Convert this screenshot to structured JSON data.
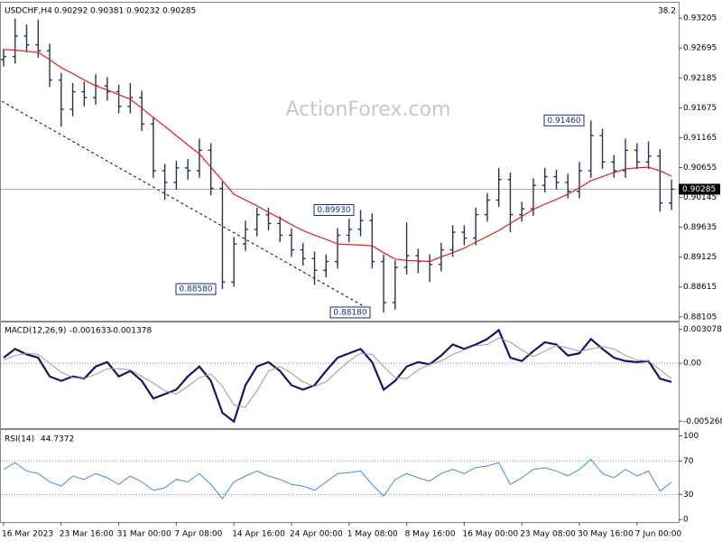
{
  "chart_data": [
    {
      "type": "ohlc",
      "title": "USDCHF,H4",
      "last_bar": {
        "open": 0.90292,
        "high": 0.90381,
        "low": 0.90232,
        "close": 0.90285
      },
      "fib_label": "38.2",
      "watermark": "ActionForex.com",
      "color": "#26325e",
      "categories": [
        "16 Mar 2023",
        null,
        null,
        null,
        null,
        "23 Mar 16:00",
        null,
        null,
        null,
        null,
        "31 Mar 00:00",
        null,
        null,
        null,
        null,
        "7 Apr 08:00",
        null,
        null,
        null,
        null,
        "14 Apr 16:00",
        null,
        null,
        null,
        null,
        "24 Apr 00:00",
        null,
        null,
        null,
        null,
        "1 May 08:00",
        null,
        null,
        null,
        null,
        "8 May 16:00",
        null,
        null,
        null,
        null,
        "16 May 00:00",
        null,
        null,
        null,
        null,
        "23 May 08:00",
        null,
        null,
        null,
        null,
        "30 May 16:00",
        null,
        null,
        null,
        null,
        "7 Jun 00:00",
        null,
        null,
        null
      ],
      "open": [
        0.925,
        0.9255,
        0.929,
        0.9275,
        0.9265,
        0.9215,
        0.9165,
        0.9195,
        0.9185,
        0.9205,
        0.9195,
        0.917,
        0.9185,
        0.914,
        0.906,
        0.904,
        0.9065,
        0.906,
        0.9095,
        0.903,
        0.887,
        0.8935,
        0.896,
        0.8985,
        0.897,
        0.895,
        0.8925,
        0.891,
        0.889,
        0.8905,
        0.895,
        0.896,
        0.8975,
        0.8905,
        0.8835,
        0.8895,
        0.8915,
        0.8905,
        0.89,
        0.8925,
        0.8955,
        0.8945,
        0.8985,
        0.901,
        0.9045,
        0.8985,
        0.8995,
        0.9035,
        0.905,
        0.904,
        0.9025,
        0.906,
        0.912,
        0.9075,
        0.906,
        0.9095,
        0.9075,
        0.9085,
        0.9005
      ],
      "high": [
        0.9268,
        0.932,
        0.931,
        0.9318,
        0.9277,
        0.9227,
        0.921,
        0.9212,
        0.9225,
        0.922,
        0.9207,
        0.921,
        0.9197,
        0.9152,
        0.9072,
        0.9077,
        0.908,
        0.9115,
        0.9107,
        0.9042,
        0.8947,
        0.8975,
        0.8997,
        0.8997,
        0.8982,
        0.8962,
        0.8937,
        0.8922,
        0.8917,
        0.8962,
        0.8978,
        0.8993,
        0.8987,
        0.8917,
        0.8907,
        0.8972,
        0.8927,
        0.8917,
        0.8937,
        0.8967,
        0.8967,
        0.8997,
        0.9022,
        0.9065,
        0.9057,
        0.9007,
        0.9047,
        0.9065,
        0.9062,
        0.9055,
        0.9075,
        0.9146,
        0.9132,
        0.9087,
        0.9115,
        0.9107,
        0.911,
        0.9097,
        0.9045
      ],
      "low": [
        0.9238,
        0.9243,
        0.9262,
        0.9253,
        0.9203,
        0.9135,
        0.9153,
        0.917,
        0.9173,
        0.918,
        0.9158,
        0.9158,
        0.9128,
        0.9048,
        0.901,
        0.9028,
        0.9045,
        0.9048,
        0.9018,
        0.8858,
        0.8862,
        0.8923,
        0.8948,
        0.8958,
        0.8938,
        0.8913,
        0.8898,
        0.8865,
        0.8878,
        0.8893,
        0.8938,
        0.8948,
        0.8893,
        0.8818,
        0.8823,
        0.8883,
        0.8885,
        0.887,
        0.8888,
        0.8913,
        0.8933,
        0.8933,
        0.8973,
        0.8998,
        0.8955,
        0.8973,
        0.8983,
        0.9023,
        0.9028,
        0.9013,
        0.9013,
        0.9048,
        0.9063,
        0.9048,
        0.9048,
        0.9063,
        0.9063,
        0.899,
        0.8993
      ],
      "close": [
        0.9255,
        0.929,
        0.9275,
        0.9265,
        0.9215,
        0.9165,
        0.9195,
        0.9185,
        0.9205,
        0.9195,
        0.917,
        0.9185,
        0.914,
        0.906,
        0.904,
        0.9065,
        0.906,
        0.9095,
        0.903,
        0.887,
        0.8935,
        0.896,
        0.8985,
        0.897,
        0.895,
        0.8925,
        0.891,
        0.889,
        0.8905,
        0.895,
        0.896,
        0.8975,
        0.8905,
        0.8835,
        0.8895,
        0.8915,
        0.8905,
        0.89,
        0.8925,
        0.8955,
        0.8945,
        0.8985,
        0.901,
        0.9045,
        0.8985,
        0.8995,
        0.9035,
        0.905,
        0.904,
        0.9025,
        0.906,
        0.912,
        0.9075,
        0.906,
        0.9095,
        0.9075,
        0.9085,
        0.9005,
        0.90285
      ],
      "series": [
        {
          "color": "#e0201b",
          "values": [
            0.9267,
            0.9266,
            0.9264,
            0.9262,
            0.925,
            0.9236,
            0.9226,
            0.9215,
            0.9205,
            0.9198,
            0.919,
            0.9182,
            0.9167,
            0.9151,
            0.9136,
            0.912,
            0.9104,
            0.9089,
            0.9066,
            0.9043,
            0.902,
            0.901,
            0.9,
            0.8989,
            0.8979,
            0.8968,
            0.8958,
            0.895,
            0.8943,
            0.8935,
            0.8934,
            0.8933,
            0.8932,
            0.892,
            0.8909,
            0.8907,
            0.8906,
            0.8905,
            0.8913,
            0.892,
            0.8928,
            0.8938,
            0.8948,
            0.8958,
            0.897,
            0.8982,
            0.8994,
            0.9003,
            0.9011,
            0.902,
            0.9031,
            0.9043,
            0.905,
            0.9057,
            0.9063,
            0.9065,
            0.9066,
            0.906,
            0.9051
          ]
        }
      ],
      "annotations": [
        {
          "value": 0.8858,
          "label": "0.88580"
        },
        {
          "value": 0.8993,
          "label": "0.89930"
        },
        {
          "value": 0.9146,
          "label": "0.91460"
        },
        {
          "value": 0.8818,
          "label": "0.88180"
        }
      ],
      "ylim": [
        0.8804,
        0.9347
      ],
      "yticks": [
        0.93205,
        0.92695,
        0.92185,
        0.91675,
        0.91165,
        0.90655,
        0.90145,
        0.89635,
        0.89125,
        0.88615,
        0.88105
      ]
    },
    {
      "type": "line",
      "title": "MACD(12,26,9)",
      "current_macd": -0.001633,
      "current_signal": -0.001378,
      "series": [
        {
          "color": "#14166e",
          "values": [
            0.0005,
            0.0013,
            0.0008,
            0.0005,
            -0.0012,
            -0.0016,
            -0.0012,
            -0.0014,
            -0.0003,
            0.0001,
            -0.0012,
            -0.0007,
            -0.0016,
            -0.0032,
            -0.0028,
            -0.0024,
            -0.0012,
            -0.0003,
            -0.0016,
            -0.0045,
            -0.0053,
            -0.002,
            -0.0003,
            0.0001,
            -0.0007,
            -0.002,
            -0.0024,
            -0.002,
            -0.0007,
            0.0005,
            0.0009,
            0.0013,
            0.0001,
            -0.0024,
            -0.0016,
            -0.0003,
            0.0001,
            -0.0001,
            0.0007,
            0.0017,
            0.0013,
            0.0017,
            0.0022,
            0.003,
            0.0005,
            0.0002,
            0.0011,
            0.0019,
            0.0017,
            0.0007,
            0.0009,
            0.0022,
            0.0013,
            0.0005,
            0.0002,
            0.0001,
            0.0002,
            -0.0014,
            -0.0017
          ]
        },
        {
          "color": "#9a9a9a",
          "values": [
            0.0003,
            0.0007,
            0.0009,
            0.0008,
            0.0,
            -0.0008,
            -0.0013,
            -0.0014,
            -0.001,
            -0.0005,
            -0.0005,
            -0.0006,
            -0.0012,
            -0.0018,
            -0.0025,
            -0.0028,
            -0.0021,
            -0.0013,
            -0.001,
            -0.0021,
            -0.0038,
            -0.004,
            -0.0025,
            -0.0007,
            -0.0003,
            -0.0009,
            -0.0017,
            -0.0021,
            -0.0017,
            -0.0007,
            0.0002,
            0.0009,
            0.0008,
            -0.0003,
            -0.0013,
            -0.0014,
            -0.0006,
            -0.0001,
            0.0002,
            0.0008,
            0.0012,
            0.0016,
            0.0017,
            0.0023,
            0.0019,
            0.0012,
            0.0006,
            0.0011,
            0.0016,
            0.0014,
            0.0011,
            0.0013,
            0.0015,
            0.0013,
            0.0007,
            0.0003,
            0.0002,
            -0.0006,
            -0.0014
          ]
        }
      ],
      "levels": [
        0
      ],
      "ylim": [
        -0.0059,
        0.0037
      ],
      "yticks": [
        0.003078,
        {
          "value": 0,
          "label": "0.00"
        },
        -0.005268
      ]
    },
    {
      "type": "line",
      "title": "RSI(14)",
      "current": 44.7372,
      "series": [
        {
          "color": "#3d8fd8",
          "values": [
            60,
            68,
            58,
            55,
            45,
            40,
            52,
            48,
            55,
            50,
            42,
            52,
            45,
            35,
            38,
            48,
            45,
            55,
            42,
            25,
            45,
            52,
            58,
            52,
            48,
            42,
            40,
            35,
            45,
            55,
            56,
            58,
            42,
            28,
            48,
            55,
            50,
            46,
            55,
            60,
            55,
            62,
            64,
            68,
            42,
            50,
            60,
            62,
            58,
            52,
            60,
            72,
            55,
            50,
            60,
            52,
            58,
            34,
            44.7
          ]
        }
      ],
      "levels": [
        70,
        30
      ],
      "ylim": [
        -3,
        107
      ],
      "yticks": [
        100,
        70,
        30,
        0
      ]
    }
  ]
}
